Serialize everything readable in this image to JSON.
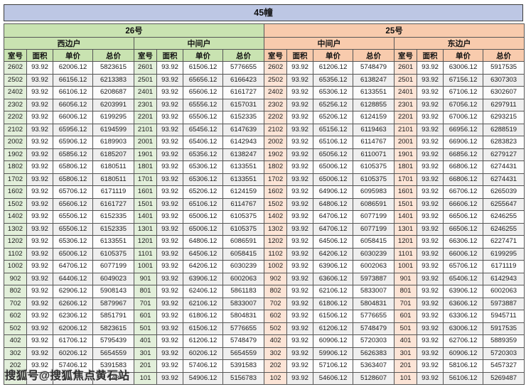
{
  "title": "45幢",
  "watermark": "搜狐号@搜狐焦点黄石站",
  "buildings": [
    "26号",
    "25号"
  ],
  "sections": [
    "西边户",
    "中间户",
    "中间户",
    "东边户"
  ],
  "col_headers": [
    "室号",
    "面积",
    "单价",
    "总价"
  ],
  "colors": {
    "title_bg": "#bdc7e4",
    "green_header": "#c9e3b1",
    "green_room_cell": "#e2efda",
    "orange_header": "#f8cbad",
    "orange_room_cell": "#fce4d6",
    "row_alt": "#efefef",
    "border": "#565656"
  },
  "note_obscured": "bottom-left row is covered by the watermark; only fragment '743' of its 总价 is visible",
  "rows": [
    [
      "2602",
      "93.92",
      "62006.12",
      "5823615",
      "2601",
      "93.92",
      "61506.12",
      "5776655",
      "2602",
      "93.92",
      "61206.12",
      "5748479",
      "2601",
      "93.92",
      "63006.12",
      "5917535"
    ],
    [
      "2502",
      "93.92",
      "66156.12",
      "6213383",
      "2501",
      "93.92",
      "65656.12",
      "6166423",
      "2502",
      "93.92",
      "65356.12",
      "6138247",
      "2501",
      "93.92",
      "67156.12",
      "6307303"
    ],
    [
      "2402",
      "93.92",
      "66106.12",
      "6208687",
      "2401",
      "93.92",
      "65606.12",
      "6161727",
      "2402",
      "93.92",
      "65306.12",
      "6133551",
      "2401",
      "93.92",
      "67106.12",
      "6302607"
    ],
    [
      "2302",
      "93.92",
      "66056.12",
      "6203991",
      "2301",
      "93.92",
      "65556.12",
      "6157031",
      "2302",
      "93.92",
      "65256.12",
      "6128855",
      "2301",
      "93.92",
      "67056.12",
      "6297911"
    ],
    [
      "2202",
      "93.92",
      "66006.12",
      "6199295",
      "2201",
      "93.92",
      "65506.12",
      "6152335",
      "2202",
      "93.92",
      "65206.12",
      "6124159",
      "2201",
      "93.92",
      "67006.12",
      "6293215"
    ],
    [
      "2102",
      "93.92",
      "65956.12",
      "6194599",
      "2101",
      "93.92",
      "65456.12",
      "6147639",
      "2102",
      "93.92",
      "65156.12",
      "6119463",
      "2101",
      "93.92",
      "66956.12",
      "6288519"
    ],
    [
      "2002",
      "93.92",
      "65906.12",
      "6189903",
      "2001",
      "93.92",
      "65406.12",
      "6142943",
      "2002",
      "93.92",
      "65106.12",
      "6114767",
      "2001",
      "93.92",
      "66906.12",
      "6283823"
    ],
    [
      "1902",
      "93.92",
      "65856.12",
      "6185207",
      "1901",
      "93.92",
      "65356.12",
      "6138247",
      "1902",
      "93.92",
      "65056.12",
      "6110071",
      "1901",
      "93.92",
      "66856.12",
      "6279127"
    ],
    [
      "1802",
      "93.92",
      "65806.12",
      "6180511",
      "1801",
      "93.92",
      "65306.12",
      "6133551",
      "1802",
      "93.92",
      "65006.12",
      "6105375",
      "1801",
      "93.92",
      "66806.12",
      "6274431"
    ],
    [
      "1702",
      "93.92",
      "65806.12",
      "6180511",
      "1701",
      "93.92",
      "65306.12",
      "6133551",
      "1702",
      "93.92",
      "65006.12",
      "6105375",
      "1701",
      "93.92",
      "66806.12",
      "6274431"
    ],
    [
      "1602",
      "93.92",
      "65706.12",
      "6171119",
      "1601",
      "93.92",
      "65206.12",
      "6124159",
      "1602",
      "93.92",
      "64906.12",
      "6095983",
      "1601",
      "93.92",
      "66706.12",
      "6265039"
    ],
    [
      "1502",
      "93.92",
      "65606.12",
      "6161727",
      "1501",
      "93.92",
      "65106.12",
      "6114767",
      "1502",
      "93.92",
      "64806.12",
      "6086591",
      "1501",
      "93.92",
      "66606.12",
      "6255647"
    ],
    [
      "1402",
      "93.92",
      "65506.12",
      "6152335",
      "1401",
      "93.92",
      "65006.12",
      "6105375",
      "1402",
      "93.92",
      "64706.12",
      "6077199",
      "1401",
      "93.92",
      "66506.12",
      "6246255"
    ],
    [
      "1302",
      "93.92",
      "65506.12",
      "6152335",
      "1301",
      "93.92",
      "65006.12",
      "6105375",
      "1302",
      "93.92",
      "64706.12",
      "6077199",
      "1301",
      "93.92",
      "66506.12",
      "6246255"
    ],
    [
      "1202",
      "93.92",
      "65306.12",
      "6133551",
      "1201",
      "93.92",
      "64806.12",
      "6086591",
      "1202",
      "93.92",
      "64506.12",
      "6058415",
      "1201",
      "93.92",
      "66306.12",
      "6227471"
    ],
    [
      "1102",
      "93.92",
      "65006.12",
      "6105375",
      "1101",
      "93.92",
      "64506.12",
      "6058415",
      "1102",
      "93.92",
      "64206.12",
      "6030239",
      "1101",
      "93.92",
      "66006.12",
      "6199295"
    ],
    [
      "1002",
      "93.92",
      "64706.12",
      "6077199",
      "1001",
      "93.92",
      "64206.12",
      "6030239",
      "1002",
      "93.92",
      "63906.12",
      "6002063",
      "1001",
      "93.92",
      "65706.12",
      "6171119"
    ],
    [
      "902",
      "93.92",
      "64406.12",
      "6049023",
      "901",
      "93.92",
      "63906.12",
      "6002063",
      "902",
      "93.92",
      "63606.12",
      "5973887",
      "901",
      "93.92",
      "65406.12",
      "6142943"
    ],
    [
      "802",
      "93.92",
      "62906.12",
      "5908143",
      "801",
      "93.92",
      "62406.12",
      "5861183",
      "802",
      "93.92",
      "62106.12",
      "5833007",
      "801",
      "93.92",
      "63906.12",
      "6002063"
    ],
    [
      "702",
      "93.92",
      "62606.12",
      "5879967",
      "701",
      "93.92",
      "62106.12",
      "5833007",
      "702",
      "93.92",
      "61806.12",
      "5804831",
      "701",
      "93.92",
      "63606.12",
      "5973887"
    ],
    [
      "602",
      "93.92",
      "62306.12",
      "5851791",
      "601",
      "93.92",
      "61806.12",
      "5804831",
      "602",
      "93.92",
      "61506.12",
      "5776655",
      "601",
      "93.92",
      "63306.12",
      "5945711"
    ],
    [
      "502",
      "93.92",
      "62006.12",
      "5823615",
      "501",
      "93.92",
      "61506.12",
      "5776655",
      "502",
      "93.92",
      "61206.12",
      "5748479",
      "501",
      "93.92",
      "63006.12",
      "5917535"
    ],
    [
      "402",
      "93.92",
      "61706.12",
      "5795439",
      "401",
      "93.92",
      "61206.12",
      "5748479",
      "402",
      "93.92",
      "60906.12",
      "5720303",
      "401",
      "93.92",
      "62706.12",
      "5889359"
    ],
    [
      "302",
      "93.92",
      "60206.12",
      "5654559",
      "301",
      "93.92",
      "60206.12",
      "5654559",
      "302",
      "93.92",
      "59906.12",
      "5626383",
      "301",
      "93.92",
      "60906.12",
      "5720303"
    ],
    [
      "202",
      "93.92",
      "57406.12",
      "5391583",
      "201",
      "93.92",
      "57406.12",
      "5391583",
      "202",
      "93.92",
      "57106.12",
      "5363407",
      "201",
      "93.92",
      "58106.12",
      "5457327"
    ],
    [
      "",
      "",
      "",
      "743",
      "101",
      "93.92",
      "54906.12",
      "5156783",
      "102",
      "93.92",
      "54606.12",
      "5128607",
      "101",
      "93.92",
      "56106.12",
      "5269487"
    ]
  ]
}
